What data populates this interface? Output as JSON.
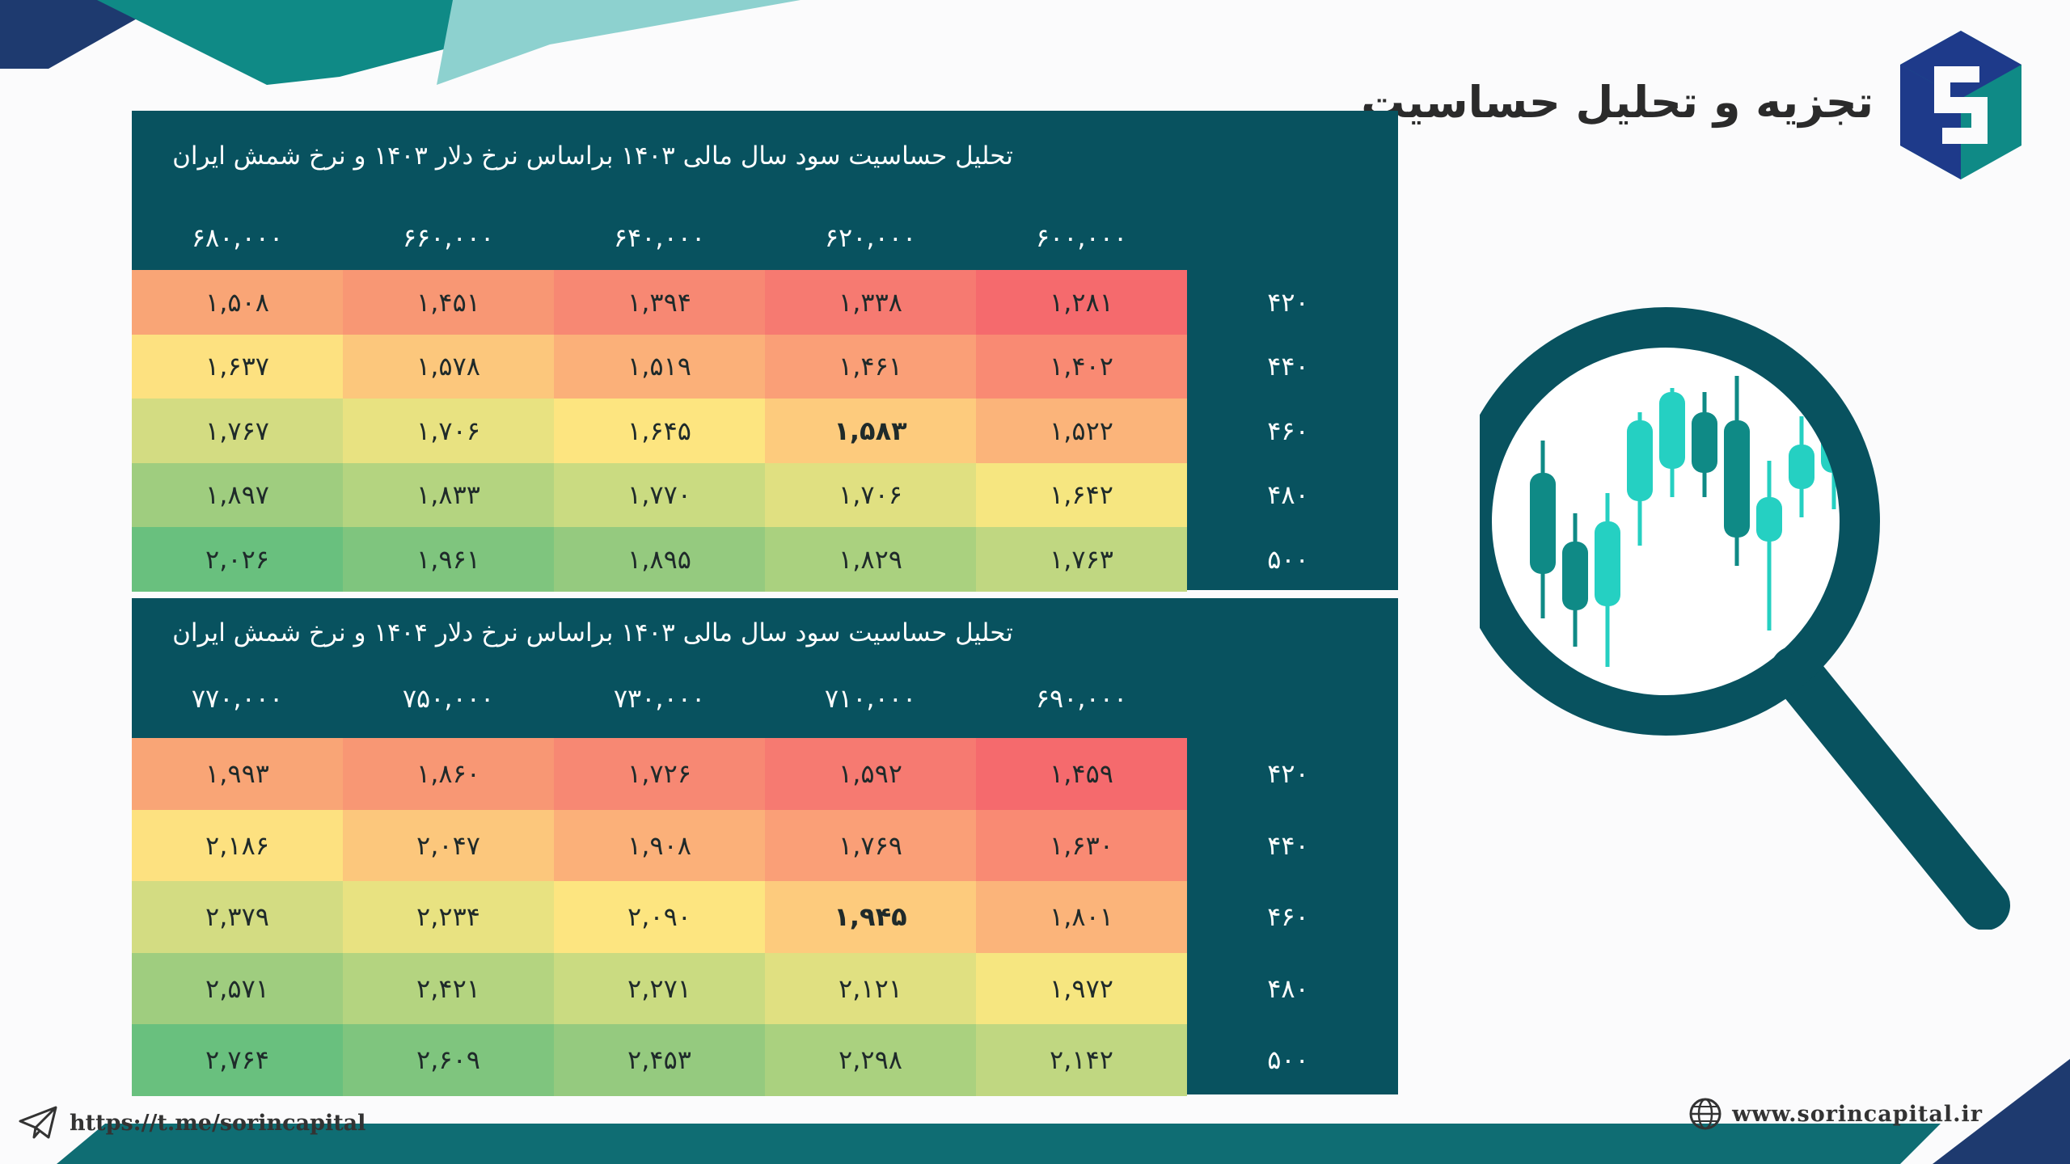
{
  "header": {
    "title": "تجزیه و تحلیل حساسیت",
    "logo_icon": "sorin-capital-logo"
  },
  "colors": {
    "panel": "#08525f",
    "accent_dark": "#1e3a8a",
    "accent_teal": "#0f8a86",
    "accent_light": "#7ecbc8",
    "heat_red": "#f56c6e",
    "heat_orange": "#fbb27b",
    "heat_yellow": "#fde27f",
    "heat_green": "#69c07e"
  },
  "tables": [
    {
      "title": "تحلیل حساسیت سود سال مالی ۱۴۰۳ براساس نرخ دلار ۱۴۰۳ و نرخ شمش ایران",
      "columns": [
        "۶۸۰,۰۰۰",
        "۶۶۰,۰۰۰",
        "۶۴۰,۰۰۰",
        "۶۲۰,۰۰۰",
        "۶۰۰,۰۰۰"
      ],
      "rows": [
        {
          "label": "۴۲۰",
          "values": [
            "۱,۵۰۸",
            "۱,۴۵۱",
            "۱,۳۹۴",
            "۱,۳۳۸",
            "۱,۲۸۱"
          ],
          "colors": [
            "#f9a576",
            "#f89774",
            "#f78873",
            "#f67a71",
            "#f56a6d"
          ]
        },
        {
          "label": "۴۴۰",
          "values": [
            "۱,۶۳۷",
            "۱,۵۷۸",
            "۱,۵۱۹",
            "۱,۴۶۱",
            "۱,۴۰۲"
          ],
          "colors": [
            "#fde180",
            "#fcc77c",
            "#fbb079",
            "#fa9f77",
            "#f98a73"
          ]
        },
        {
          "label": "۴۶۰",
          "values": [
            "۱,۷۶۷",
            "۱,۷۰۶",
            "۱,۶۴۵",
            "۱,۵۸۳",
            "۱,۵۲۲"
          ],
          "colors": [
            "#d3dc82",
            "#e8e281",
            "#fde580",
            "#fdcb7d",
            "#fbb47a"
          ]
        },
        {
          "label": "۴۸۰",
          "values": [
            "۱,۸۹۷",
            "۱,۸۳۳",
            "۱,۷۷۰",
            "۱,۷۰۶",
            "۱,۶۴۲"
          ],
          "colors": [
            "#9fcd7f",
            "#b4d480",
            "#cadb81",
            "#e0e081",
            "#f6e680"
          ]
        },
        {
          "label": "۵۰۰",
          "values": [
            "۲,۰۲۶",
            "۱,۹۶۱",
            "۱,۸۹۵",
            "۱,۸۲۹",
            "۱,۷۶۳"
          ],
          "colors": [
            "#69c07e",
            "#7fc57e",
            "#95ca7f",
            "#aad17f",
            "#c0d781"
          ]
        }
      ],
      "bold_cell": [
        2,
        3
      ]
    },
    {
      "title": "تحلیل حساسیت سود سال مالی ۱۴۰۳ براساس نرخ دلار ۱۴۰۴ و نرخ شمش ایران",
      "columns": [
        "۷۷۰,۰۰۰",
        "۷۵۰,۰۰۰",
        "۷۳۰,۰۰۰",
        "۷۱۰,۰۰۰",
        "۶۹۰,۰۰۰"
      ],
      "rows": [
        {
          "label": "۴۲۰",
          "values": [
            "۱,۹۹۳",
            "۱,۸۶۰",
            "۱,۷۲۶",
            "۱,۵۹۲",
            "۱,۴۵۹"
          ],
          "colors": [
            "#f9a576",
            "#f89774",
            "#f78873",
            "#f67a71",
            "#f56a6d"
          ]
        },
        {
          "label": "۴۴۰",
          "values": [
            "۲,۱۸۶",
            "۲,۰۴۷",
            "۱,۹۰۸",
            "۱,۷۶۹",
            "۱,۶۳۰"
          ],
          "colors": [
            "#fde180",
            "#fcc77c",
            "#fbb079",
            "#fa9f77",
            "#f98a73"
          ]
        },
        {
          "label": "۴۶۰",
          "values": [
            "۲,۳۷۹",
            "۲,۲۳۴",
            "۲,۰۹۰",
            "۱,۹۴۵",
            "۱,۸۰۱"
          ],
          "colors": [
            "#d3dc82",
            "#e8e281",
            "#fde580",
            "#fdcb7d",
            "#fbb47a"
          ]
        },
        {
          "label": "۴۸۰",
          "values": [
            "۲,۵۷۱",
            "۲,۴۲۱",
            "۲,۲۷۱",
            "۲,۱۲۱",
            "۱,۹۷۲"
          ],
          "colors": [
            "#9fcd7f",
            "#b4d480",
            "#cadb81",
            "#e0e081",
            "#f6e680"
          ]
        },
        {
          "label": "۵۰۰",
          "values": [
            "۲,۷۶۴",
            "۲,۶۰۹",
            "۲,۴۵۳",
            "۲,۲۹۸",
            "۲,۱۴۲"
          ],
          "colors": [
            "#69c07e",
            "#7fc57e",
            "#95ca7f",
            "#aad17f",
            "#c0d781"
          ]
        }
      ],
      "bold_cell": [
        2,
        3
      ]
    }
  ],
  "footer": {
    "telegram_url": "https://t.me/sorincapital",
    "telegram_icon": "paper-plane-icon",
    "website_url": "www.sorincapital.ir",
    "website_icon": "globe-icon"
  }
}
